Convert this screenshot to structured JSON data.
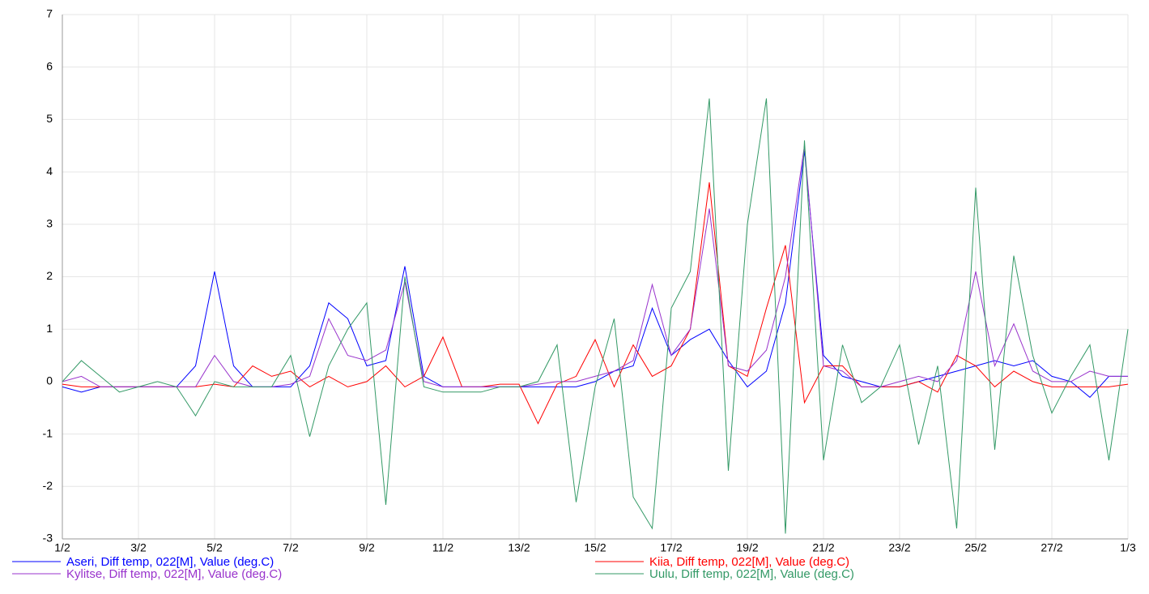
{
  "chart_data": {
    "type": "line",
    "x": [
      0,
      0.5,
      1,
      1.5,
      2,
      2.5,
      3,
      3.5,
      4,
      4.5,
      5,
      5.5,
      6,
      6.5,
      7,
      7.5,
      8,
      8.5,
      9,
      9.5,
      10,
      10.5,
      11,
      11.5,
      12,
      12.5,
      13,
      13.5,
      14,
      14.5,
      15,
      15.5,
      16,
      16.5,
      17,
      17.5,
      18,
      18.5,
      19,
      19.5,
      20,
      20.5,
      21,
      21.5,
      22,
      22.5,
      23,
      23.5,
      24,
      24.5,
      25,
      25.5,
      26,
      26.5,
      27,
      27.5,
      28
    ],
    "series": [
      {
        "name": "Aseri, Diff temp, 022[M], Value (deg.C)",
        "color": "#0000ff",
        "values": [
          -0.1,
          -0.2,
          -0.1,
          -0.1,
          -0.1,
          -0.1,
          -0.1,
          0.3,
          2.1,
          0.3,
          -0.1,
          -0.1,
          -0.1,
          0.3,
          1.5,
          1.2,
          0.3,
          0.4,
          2.2,
          0.1,
          -0.1,
          -0.1,
          -0.1,
          -0.1,
          -0.1,
          -0.1,
          -0.1,
          -0.1,
          0.0,
          0.2,
          0.3,
          1.4,
          0.5,
          0.8,
          1.0,
          0.4,
          -0.1,
          0.2,
          1.5,
          4.4,
          0.5,
          0.1,
          0.0,
          -0.1,
          -0.1,
          0.0,
          0.1,
          0.2,
          0.3,
          0.4,
          0.3,
          0.4,
          0.1,
          0.0,
          -0.3,
          0.1,
          0.1
        ]
      },
      {
        "name": "Kiia, Diff temp, 022[M], Value (deg.C)",
        "color": "#ff0000",
        "values": [
          -0.05,
          -0.1,
          -0.1,
          -0.1,
          -0.1,
          -0.1,
          -0.1,
          -0.1,
          -0.05,
          -0.1,
          0.3,
          0.1,
          0.2,
          -0.1,
          0.1,
          -0.1,
          0.0,
          0.3,
          -0.1,
          0.1,
          0.85,
          -0.1,
          -0.1,
          -0.05,
          -0.05,
          -0.8,
          -0.05,
          0.1,
          0.8,
          -0.1,
          0.7,
          0.1,
          0.3,
          1.0,
          3.8,
          0.3,
          0.1,
          1.4,
          2.6,
          -0.4,
          0.3,
          0.3,
          -0.1,
          -0.1,
          -0.1,
          0.0,
          -0.2,
          0.5,
          0.3,
          -0.1,
          0.2,
          0.0,
          -0.1,
          -0.1,
          -0.1,
          -0.1,
          -0.05
        ]
      },
      {
        "name": "Kylitse, Diff temp, 022[M], Value (deg.C)",
        "color": "#9933cc",
        "values": [
          0.0,
          0.1,
          -0.1,
          -0.1,
          -0.1,
          -0.1,
          -0.1,
          -0.1,
          0.5,
          0.0,
          -0.1,
          -0.1,
          -0.05,
          0.1,
          1.2,
          0.5,
          0.4,
          0.6,
          1.9,
          0.0,
          -0.1,
          -0.1,
          -0.1,
          -0.1,
          -0.1,
          -0.05,
          0.0,
          0.0,
          0.1,
          0.2,
          0.4,
          1.85,
          0.5,
          1.0,
          3.3,
          0.3,
          0.2,
          0.6,
          2.0,
          4.5,
          0.3,
          0.2,
          -0.1,
          -0.1,
          0.0,
          0.1,
          0.0,
          0.4,
          2.1,
          0.3,
          1.1,
          0.2,
          0.0,
          0.0,
          0.2,
          0.1,
          0.1
        ]
      },
      {
        "name": "Uulu, Diff temp, 022[M], Value (deg.C)",
        "color": "#339966",
        "values": [
          0.0,
          0.4,
          0.1,
          -0.2,
          -0.1,
          0.0,
          -0.1,
          -0.65,
          0.0,
          -0.1,
          -0.1,
          -0.1,
          0.5,
          -1.05,
          0.3,
          1.0,
          1.5,
          -2.35,
          2.0,
          -0.1,
          -0.2,
          -0.2,
          -0.2,
          -0.1,
          -0.1,
          0.0,
          0.7,
          -2.3,
          -0.1,
          1.2,
          -2.2,
          -2.8,
          1.4,
          2.1,
          5.4,
          -1.7,
          3.0,
          5.4,
          -2.9,
          4.6,
          -1.5,
          0.7,
          -0.4,
          -0.1,
          0.7,
          -1.2,
          0.3,
          -2.8,
          3.7,
          -1.3,
          2.4,
          0.5,
          -0.6,
          0.1,
          0.7,
          -1.5,
          1.0
        ]
      }
    ],
    "xlim": [
      0,
      28
    ],
    "xticks": [
      {
        "value": 0,
        "label": "1/2"
      },
      {
        "value": 2,
        "label": "3/2"
      },
      {
        "value": 4,
        "label": "5/2"
      },
      {
        "value": 6,
        "label": "7/2"
      },
      {
        "value": 8,
        "label": "9/2"
      },
      {
        "value": 10,
        "label": "11/2"
      },
      {
        "value": 12,
        "label": "13/2"
      },
      {
        "value": 14,
        "label": "15/2"
      },
      {
        "value": 16,
        "label": "17/2"
      },
      {
        "value": 18,
        "label": "19/2"
      },
      {
        "value": 20,
        "label": "21/2"
      },
      {
        "value": 22,
        "label": "23/2"
      },
      {
        "value": 24,
        "label": "25/2"
      },
      {
        "value": 26,
        "label": "27/2"
      },
      {
        "value": 28,
        "label": "1/3"
      }
    ],
    "ylim": [
      -3,
      7
    ],
    "yticks": [
      -3,
      -2,
      -1,
      0,
      1,
      2,
      3,
      4,
      5,
      6,
      7
    ],
    "grid": true
  }
}
